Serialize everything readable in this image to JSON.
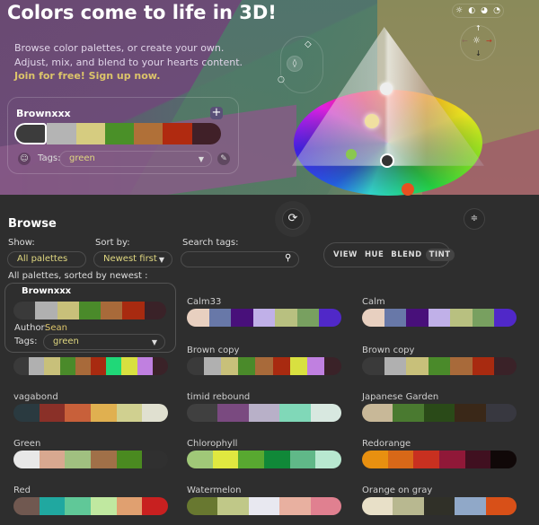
{
  "hero": {
    "title": "Colors come to life in 3D!",
    "desc1": "Browse color palettes, or create your own.",
    "desc2": "Adjust, mix, and blend to your hearts content.",
    "join": "Join for free! Sign up now."
  },
  "editor": {
    "name": "Brownxxx",
    "plus": "+",
    "tags_label": "Tags:",
    "tags_value": "green",
    "colors": [
      "#3c3c3c",
      "#b4b4b4",
      "#d6cc80",
      "#4a9028",
      "#b07038",
      "#b02a10",
      "#402028"
    ]
  },
  "browse": {
    "title": "Browse",
    "show_label": "Show:",
    "show_value": "All palettes",
    "sort_label": "Sort by:",
    "sort_value": "Newest first",
    "search_label": "Search tags:",
    "search_value": "",
    "summary": "All palettes, sorted by newest :"
  },
  "view_modes": [
    "VIEW",
    "HUE",
    "BLEND",
    "TINT"
  ],
  "active_view": "TINT",
  "card": {
    "name": "Brownxxx",
    "author_label": "Author:",
    "author": "Sean",
    "tags_label": "Tags:",
    "tags_value": "green",
    "colors": [
      "#3a3a3a",
      "#b0b0b0",
      "#c8c07a",
      "#4a8a2a",
      "#a86a3a",
      "#a82a10",
      "#3a2228"
    ]
  },
  "palettes": [
    {
      "name": "Calm33",
      "colors": [
        "#e8d0c0",
        "#6878a8",
        "#48107a",
        "#c0b0e8",
        "#b8c080",
        "#78a060",
        "#5028c8"
      ]
    },
    {
      "name": "Calm",
      "colors": [
        "#e8d0c0",
        "#6878a8",
        "#48107a",
        "#c0b0e8",
        "#b8c080",
        "#78a060",
        "#5028c8"
      ]
    },
    {
      "name": "",
      "colors": [
        "#3a3a3a",
        "#b0b0b0",
        "#c8c07a",
        "#4a8a2a",
        "#a86a3a",
        "#a82a10",
        "#20d878",
        "#d8e040",
        "#c080e0",
        "#3a2228"
      ]
    },
    {
      "name": "Brown copy",
      "colors": [
        "#3a3a3a",
        "#b0b0b0",
        "#c8c07a",
        "#4a8a2a",
        "#a86a3a",
        "#a82a10",
        "#d8e040",
        "#c080e0",
        "#3a2228"
      ]
    },
    {
      "name": "Brown copy",
      "colors": [
        "#3a3a3a",
        "#b0b0b0",
        "#c8c07a",
        "#4a8a2a",
        "#a86a3a",
        "#a82a10",
        "#3a2228"
      ]
    },
    {
      "name": "vagabond",
      "colors": [
        "#2a3a40",
        "#8a3028",
        "#c8603a",
        "#e0b050",
        "#d0d090",
        "#e0e0d0"
      ]
    },
    {
      "name": "timid rebound",
      "colors": [
        "#404040",
        "#7a4a80",
        "#b8b0c8",
        "#80d8b8",
        "#d8e8e0"
      ]
    },
    {
      "name": "Japanese Garden",
      "colors": [
        "#c8b898",
        "#4a7a30",
        "#2a4a18",
        "#3a2818",
        "#383840"
      ]
    },
    {
      "name": "Green",
      "colors": [
        "#e8e8e8",
        "#d8a890",
        "#a0c080",
        "#a07048",
        "#4a8a20",
        "#303030"
      ]
    },
    {
      "name": "Chlorophyll",
      "colors": [
        "#a0c878",
        "#e0e840",
        "#58a830",
        "#108838",
        "#60b888",
        "#b8e8d0"
      ]
    },
    {
      "name": "Redorange",
      "colors": [
        "#e89010",
        "#d86818",
        "#c83020",
        "#901838",
        "#401020",
        "#100808"
      ]
    },
    {
      "name": "Red",
      "colors": [
        "#705850",
        "#20a8a0",
        "#60c898",
        "#c0e8a0",
        "#e0a070",
        "#c82020"
      ]
    },
    {
      "name": "Watermelon",
      "colors": [
        "#687830",
        "#c0c888",
        "#e8e8f0",
        "#e8b0a0",
        "#e08090"
      ]
    },
    {
      "name": "Orange on gray",
      "colors": [
        "#e8e0c8",
        "#b8b890",
        "#303028",
        "#90a8c8",
        "#d85018"
      ]
    }
  ],
  "accent": "#dcc46a"
}
